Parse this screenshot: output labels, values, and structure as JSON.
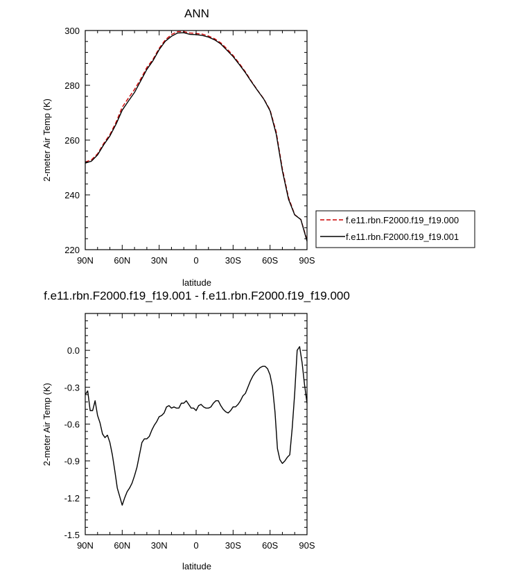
{
  "chart_data": [
    {
      "type": "line",
      "title": "ANN",
      "xlabel": "latitude",
      "ylabel": "2-meter Air Temp (K)",
      "xlim": [
        90,
        -90
      ],
      "ylim": [
        220,
        300
      ],
      "x_ticks": [
        90,
        60,
        30,
        0,
        -30,
        -60,
        -90
      ],
      "x_tick_labels": [
        "90N",
        "60N",
        "30N",
        "0",
        "30S",
        "60S",
        "90S"
      ],
      "y_ticks": [
        220,
        240,
        260,
        280,
        300
      ],
      "y_tick_labels": [
        "220",
        "240",
        "260",
        "280",
        "300"
      ],
      "grid": false,
      "legend": {
        "placement": "right",
        "entries": [
          {
            "label": "f.e11.rbn.F2000.f19_f19.000",
            "color": "#cc0000",
            "dash": "dashed"
          },
          {
            "label": "f.e11.rbn.F2000.f19_f19.001",
            "color": "#000000",
            "dash": "solid"
          }
        ]
      },
      "x": [
        90,
        85,
        80,
        75,
        70,
        65,
        60,
        55,
        50,
        45,
        40,
        35,
        30,
        25,
        20,
        15,
        10,
        5,
        0,
        -5,
        -10,
        -15,
        -20,
        -25,
        -30,
        -35,
        -40,
        -45,
        -50,
        -55,
        -60,
        -65,
        -70,
        -75,
        -80,
        -85,
        -90
      ],
      "series": [
        {
          "name": "f.e11.rbn.F2000.f19_f19.000",
          "color": "#cc0000",
          "dash": "dashed",
          "values": [
            252.0,
            252.8,
            255.0,
            258.8,
            262.0,
            266.5,
            272.0,
            275.3,
            278.5,
            282.3,
            286.5,
            289.5,
            293.5,
            296.6,
            298.5,
            299.6,
            299.6,
            299.1,
            298.9,
            298.7,
            298.0,
            297.0,
            295.5,
            293.3,
            290.9,
            288.0,
            284.9,
            281.4,
            278.1,
            275.0,
            271.0,
            263.0,
            249.5,
            239.0,
            232.8,
            231.0,
            223.5
          ]
        },
        {
          "name": "f.e11.rbn.F2000.f19_f19.001",
          "color": "#000000",
          "dash": "solid",
          "values": [
            251.6,
            252.3,
            254.6,
            258.3,
            261.5,
            265.8,
            270.9,
            274.2,
            277.4,
            281.6,
            285.8,
            289.0,
            293.0,
            296.1,
            297.9,
            299.1,
            299.2,
            298.6,
            298.5,
            298.2,
            297.6,
            296.6,
            295.1,
            292.8,
            290.5,
            287.6,
            284.6,
            281.2,
            278.0,
            274.9,
            270.7,
            262.2,
            248.8,
            238.4,
            232.7,
            231.0,
            223.1
          ]
        }
      ]
    },
    {
      "type": "line",
      "title": "f.e11.rbn.F2000.f19_f19.001 - f.e11.rbn.F2000.f19_f19.000",
      "xlabel": "latitude",
      "ylabel": "2-meter Air Temp (K)",
      "xlim": [
        90,
        -90
      ],
      "ylim": [
        -1.5,
        0.3
      ],
      "x_ticks": [
        90,
        60,
        30,
        0,
        -30,
        -60,
        -90
      ],
      "x_tick_labels": [
        "90N",
        "60N",
        "30N",
        "0",
        "30S",
        "60S",
        "90S"
      ],
      "y_ticks": [
        -1.5,
        -1.2,
        -0.9,
        -0.6,
        -0.3,
        0.0
      ],
      "y_tick_labels": [
        "-1.5",
        "-1.2",
        "-0.9",
        "-0.6",
        "-0.3",
        "0.0"
      ],
      "grid": false,
      "x": [
        90,
        88,
        86,
        84,
        82,
        80,
        78,
        76,
        74,
        72,
        70,
        68,
        66,
        64,
        62,
        60,
        58,
        56,
        54,
        52,
        50,
        48,
        46,
        44,
        42,
        40,
        38,
        36,
        34,
        32,
        30,
        28,
        26,
        24,
        22,
        20,
        18,
        16,
        14,
        12,
        10,
        8,
        6,
        4,
        2,
        0,
        -2,
        -4,
        -6,
        -8,
        -10,
        -12,
        -14,
        -16,
        -18,
        -20,
        -22,
        -24,
        -26,
        -28,
        -30,
        -32,
        -34,
        -36,
        -38,
        -40,
        -42,
        -44,
        -46,
        -48,
        -50,
        -52,
        -54,
        -56,
        -58,
        -60,
        -62,
        -64,
        -66,
        -68,
        -70,
        -72,
        -74,
        -76,
        -78,
        -80,
        -82,
        -84,
        -86,
        -88,
        -90
      ],
      "series": [
        {
          "color": "#000000",
          "dash": "solid",
          "values": [
            -0.36,
            -0.33,
            -0.49,
            -0.49,
            -0.41,
            -0.53,
            -0.59,
            -0.68,
            -0.71,
            -0.69,
            -0.75,
            -0.85,
            -0.98,
            -1.12,
            -1.19,
            -1.26,
            -1.2,
            -1.15,
            -1.12,
            -1.08,
            -1.02,
            -0.95,
            -0.85,
            -0.75,
            -0.72,
            -0.72,
            -0.7,
            -0.65,
            -0.61,
            -0.58,
            -0.54,
            -0.53,
            -0.51,
            -0.46,
            -0.45,
            -0.47,
            -0.46,
            -0.47,
            -0.47,
            -0.43,
            -0.43,
            -0.41,
            -0.44,
            -0.47,
            -0.47,
            -0.49,
            -0.45,
            -0.44,
            -0.46,
            -0.47,
            -0.47,
            -0.46,
            -0.43,
            -0.41,
            -0.41,
            -0.45,
            -0.48,
            -0.5,
            -0.51,
            -0.49,
            -0.46,
            -0.46,
            -0.44,
            -0.41,
            -0.37,
            -0.35,
            -0.3,
            -0.25,
            -0.21,
            -0.18,
            -0.16,
            -0.14,
            -0.13,
            -0.13,
            -0.15,
            -0.2,
            -0.3,
            -0.5,
            -0.8,
            -0.89,
            -0.92,
            -0.9,
            -0.87,
            -0.85,
            -0.63,
            -0.35,
            0.0,
            0.03,
            -0.1,
            -0.28,
            -0.43
          ]
        }
      ]
    }
  ]
}
